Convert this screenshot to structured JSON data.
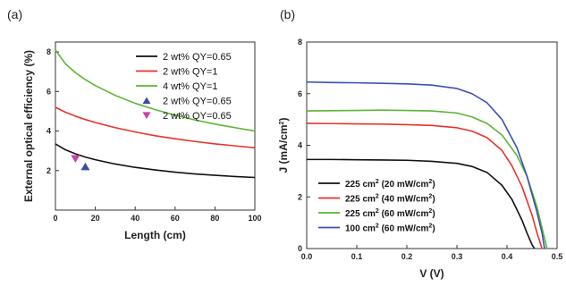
{
  "chart_data": [
    {
      "type": "line",
      "panel_label": "(a)",
      "xlabel": "Length (cm)",
      "ylabel": "External optical efficiency (%)",
      "xlim": [
        0,
        100
      ],
      "ylim": [
        0,
        8.5
      ],
      "xticks": [
        "0",
        "20",
        "40",
        "60",
        "80",
        "100"
      ],
      "xtick_values": [
        0,
        20,
        40,
        60,
        80,
        100
      ],
      "yticks": [
        "2",
        "4",
        "6",
        "8"
      ],
      "ytick_values": [
        2,
        4,
        6,
        8
      ],
      "grid": false,
      "legend_position": "top-right",
      "series": [
        {
          "name": "2 wt% QY=0.65",
          "kind": "line",
          "color": "#111111",
          "x": [
            0,
            5,
            10,
            15,
            20,
            30,
            40,
            50,
            60,
            70,
            80,
            90,
            100
          ],
          "y": [
            3.35,
            3.05,
            2.85,
            2.68,
            2.55,
            2.33,
            2.16,
            2.03,
            1.92,
            1.83,
            1.76,
            1.7,
            1.65
          ]
        },
        {
          "name": "2 wt% QY=1",
          "kind": "line",
          "color": "#e8332a",
          "x": [
            0,
            5,
            10,
            15,
            20,
            30,
            40,
            50,
            60,
            70,
            80,
            90,
            100
          ],
          "y": [
            5.2,
            4.95,
            4.75,
            4.58,
            4.43,
            4.17,
            3.95,
            3.76,
            3.61,
            3.47,
            3.35,
            3.25,
            3.15
          ]
        },
        {
          "name": "4 wt% QY=1",
          "kind": "line",
          "color": "#5ab631",
          "x": [
            0,
            5,
            10,
            15,
            20,
            30,
            40,
            50,
            60,
            70,
            80,
            90,
            100
          ],
          "y": [
            8.1,
            7.4,
            6.95,
            6.6,
            6.3,
            5.8,
            5.4,
            5.08,
            4.8,
            4.56,
            4.35,
            4.17,
            4.0
          ]
        },
        {
          "name": "2 wt% QY=0.65",
          "kind": "marker",
          "marker": "triangle-up",
          "color": "#3a4fa0",
          "x": [
            15
          ],
          "y": [
            2.2
          ]
        },
        {
          "name": "2 wt% QY=0.65",
          "kind": "marker",
          "marker": "triangle-down",
          "color": "#cc3fa8",
          "x": [
            10
          ],
          "y": [
            2.6
          ]
        }
      ]
    },
    {
      "type": "line",
      "panel_label": "(b)",
      "xlabel": "V (V)",
      "ylabel": "J (mA/cm²)",
      "xlim": [
        0,
        0.5
      ],
      "ylim": [
        0,
        8
      ],
      "xticks": [
        "0.0",
        "0.1",
        "0.2",
        "0.3",
        "0.4",
        "0.5"
      ],
      "xtick_values": [
        0,
        0.1,
        0.2,
        0.3,
        0.4,
        0.5
      ],
      "yticks": [
        "0",
        "2",
        "4",
        "6",
        "8"
      ],
      "ytick_values": [
        0,
        2,
        4,
        6,
        8
      ],
      "grid": false,
      "legend_position": "bottom-left",
      "series": [
        {
          "name": "225 cm² (20 mW/cm²)",
          "color": "#111111",
          "x": [
            0,
            0.05,
            0.1,
            0.15,
            0.2,
            0.25,
            0.3,
            0.33,
            0.36,
            0.39,
            0.41,
            0.43,
            0.44,
            0.45,
            0.455
          ],
          "y": [
            3.45,
            3.45,
            3.44,
            3.43,
            3.42,
            3.38,
            3.3,
            3.18,
            2.95,
            2.45,
            1.9,
            1.1,
            0.6,
            0.15,
            0
          ]
        },
        {
          "name": "225 cm² (40 mW/cm²)",
          "color": "#e8332a",
          "x": [
            0,
            0.05,
            0.1,
            0.15,
            0.2,
            0.25,
            0.3,
            0.33,
            0.36,
            0.39,
            0.41,
            0.43,
            0.45,
            0.46,
            0.47
          ],
          "y": [
            4.85,
            4.84,
            4.83,
            4.82,
            4.8,
            4.77,
            4.68,
            4.55,
            4.3,
            3.8,
            3.2,
            2.4,
            1.3,
            0.6,
            0
          ]
        },
        {
          "name": "225 cm² (60 mW/cm²)",
          "color": "#5ab631",
          "x": [
            0,
            0.05,
            0.1,
            0.15,
            0.2,
            0.25,
            0.3,
            0.33,
            0.36,
            0.39,
            0.42,
            0.44,
            0.46,
            0.47,
            0.48
          ],
          "y": [
            5.33,
            5.34,
            5.35,
            5.36,
            5.35,
            5.33,
            5.25,
            5.1,
            4.85,
            4.4,
            3.6,
            2.8,
            1.6,
            0.8,
            0
          ]
        },
        {
          "name": "100 cm² (60 mW/cm²)",
          "color": "#3a4fb5",
          "x": [
            0,
            0.05,
            0.1,
            0.15,
            0.2,
            0.25,
            0.3,
            0.33,
            0.36,
            0.39,
            0.42,
            0.44,
            0.46,
            0.47,
            0.475
          ],
          "y": [
            6.45,
            6.43,
            6.42,
            6.4,
            6.38,
            6.33,
            6.2,
            6.0,
            5.65,
            5.0,
            3.9,
            2.8,
            1.4,
            0.6,
            0
          ]
        }
      ]
    }
  ]
}
